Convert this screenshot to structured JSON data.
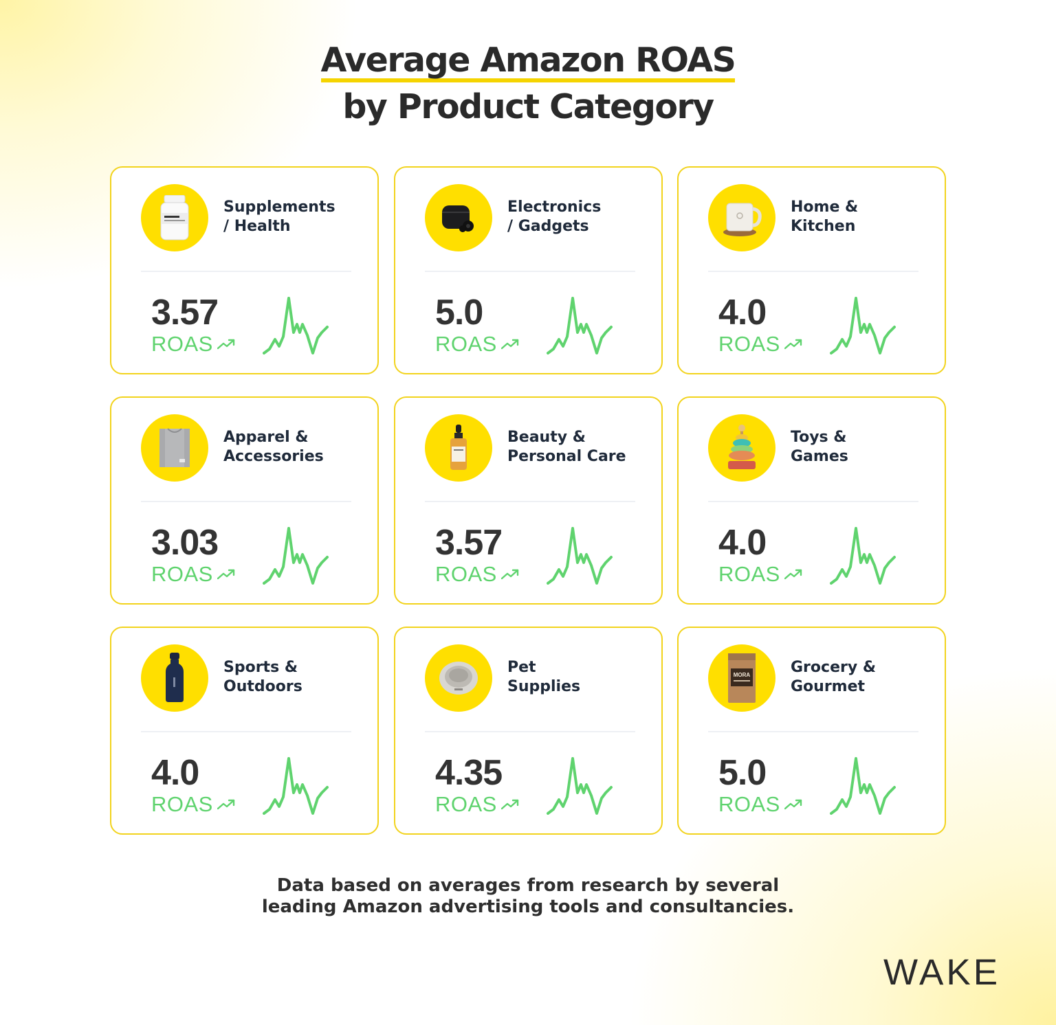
{
  "title": {
    "line1": "Average Amazon ROAS",
    "line2": "by Product Category"
  },
  "accent_color": "#FFDF00",
  "trend_color": "#5FD36E",
  "cards": [
    {
      "category": "Supplements\n/ Health",
      "value": "3.57",
      "unit": "ROAS",
      "icon": "supplement-bottle-icon"
    },
    {
      "category": "Electronics\n/ Gadgets",
      "value": "5.0",
      "unit": "ROAS",
      "icon": "earbuds-case-icon"
    },
    {
      "category": "Home &\nKitchen",
      "value": "4.0",
      "unit": "ROAS",
      "icon": "mug-icon"
    },
    {
      "category": "Apparel &\nAccessories",
      "value": "3.03",
      "unit": "ROAS",
      "icon": "tshirt-icon"
    },
    {
      "category": "Beauty &\nPersonal Care",
      "value": "3.57",
      "unit": "ROAS",
      "icon": "serum-bottle-icon"
    },
    {
      "category": "Toys &\nGames",
      "value": "4.0",
      "unit": "ROAS",
      "icon": "ring-stacker-toy-icon"
    },
    {
      "category": "Sports &\nOutdoors",
      "value": "4.0",
      "unit": "ROAS",
      "icon": "water-bottle-icon"
    },
    {
      "category": "Pet\nSupplies",
      "value": "4.35",
      "unit": "ROAS",
      "icon": "pet-bowl-icon"
    },
    {
      "category": "Grocery &\nGourmet",
      "value": "5.0",
      "unit": "ROAS",
      "icon": "coffee-bag-icon"
    }
  ],
  "coffee_bag_label": "MORA",
  "footnote": "Data based on averages from research by several\nleading Amazon advertising tools and consultancies.",
  "logo": "WAKE"
}
